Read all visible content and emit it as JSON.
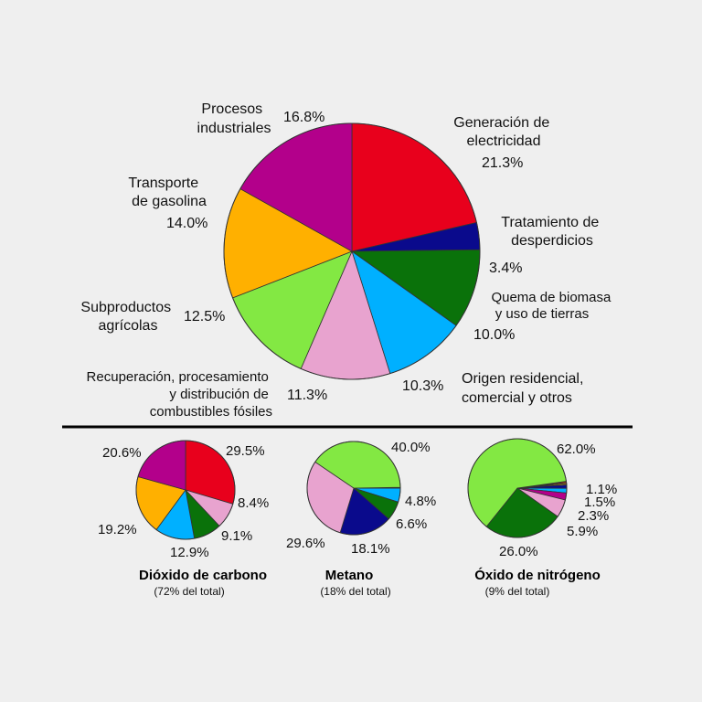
{
  "colors": {
    "electricity": "#e8001c",
    "waste": "#0a0a8c",
    "biomass": "#0a720a",
    "residential": "#00b0ff",
    "fossil": "#e8a3cf",
    "agricultural": "#83e843",
    "transport": "#ffb000",
    "industrial": "#b3008b",
    "extra1": "#ff7f00",
    "extra2": "#e8c800"
  },
  "chart_data": [
    {
      "type": "pie",
      "title": "",
      "slices": [
        {
          "key": "electricity",
          "label": [
            "Generación de",
            "electricidad"
          ],
          "value": 21.3,
          "value_label": "21.3%"
        },
        {
          "key": "waste",
          "label": [
            "Tratamiento de",
            "desperdicios"
          ],
          "value": 3.4,
          "value_label": "3.4%"
        },
        {
          "key": "biomass",
          "label": [
            "Quema de biomasa",
            "y uso de tierras"
          ],
          "value": 10.0,
          "value_label": "10.0%"
        },
        {
          "key": "residential",
          "label": [
            "Origen residencial,",
            "comercial y otros"
          ],
          "value": 10.3,
          "value_label": "10.3%"
        },
        {
          "key": "fossil",
          "label": [
            "Recuperación, procesamiento",
            "y distribución de",
            "combustibles fósiles"
          ],
          "value": 11.3,
          "value_label": "11.3%"
        },
        {
          "key": "agricultural",
          "label": [
            "Subproductos",
            "agrícolas"
          ],
          "value": 12.5,
          "value_label": "12.5%"
        },
        {
          "key": "transport",
          "label": [
            "Transporte",
            "de gasolina"
          ],
          "value": 14.0,
          "value_label": "14.0%"
        },
        {
          "key": "industrial",
          "label": [
            "Procesos",
            "industriales"
          ],
          "value": 16.8,
          "value_label": "16.8%"
        }
      ]
    },
    {
      "type": "pie",
      "title": "Dióxido de carbono",
      "subtitle": "(72% del total)",
      "slices": [
        {
          "key": "electricity",
          "value": 29.5,
          "value_label": "29.5%"
        },
        {
          "key": "fossil",
          "value": 8.4,
          "value_label": "8.4%"
        },
        {
          "key": "biomass",
          "value": 9.1,
          "value_label": "9.1%"
        },
        {
          "key": "residential",
          "value": 12.9,
          "value_label": "12.9%"
        },
        {
          "key": "transport",
          "value": 19.2,
          "value_label": "19.2%"
        },
        {
          "key": "industrial",
          "value": 20.6,
          "value_label": "20.6%"
        }
      ]
    },
    {
      "type": "pie",
      "title": "Metano",
      "subtitle": "(18% del total)",
      "slices": [
        {
          "key": "transport",
          "value": 0.3,
          "value_label": ""
        },
        {
          "key": "residential",
          "value": 4.8,
          "value_label": "4.8%"
        },
        {
          "key": "biomass",
          "value": 6.6,
          "value_label": "6.6%"
        },
        {
          "key": "waste",
          "value": 18.1,
          "value_label": "18.1%"
        },
        {
          "key": "fossil",
          "value": 29.6,
          "value_label": "29.6%"
        },
        {
          "key": "agricultural",
          "value": 40.0,
          "value_label": "40.0%"
        }
      ]
    },
    {
      "type": "pie",
      "title": "Óxido de nitrógeno",
      "subtitle": "(9% del total)",
      "slices": [
        {
          "key": "electricity",
          "value": 0.4,
          "value_label": ""
        },
        {
          "key": "extra1",
          "value": 0.4,
          "value_label": ""
        },
        {
          "key": "extra2",
          "value": 0.4,
          "value_label": ""
        },
        {
          "key": "waste",
          "value": 1.1,
          "value_label": "1.1%"
        },
        {
          "key": "residential",
          "value": 1.5,
          "value_label": "1.5%"
        },
        {
          "key": "industrial",
          "value": 2.3,
          "value_label": "2.3%"
        },
        {
          "key": "fossil",
          "value": 5.9,
          "value_label": "5.9%"
        },
        {
          "key": "biomass",
          "value": 26.0,
          "value_label": "26.0%"
        },
        {
          "key": "agricultural",
          "value": 62.0,
          "value_label": "62.0%"
        }
      ]
    }
  ]
}
